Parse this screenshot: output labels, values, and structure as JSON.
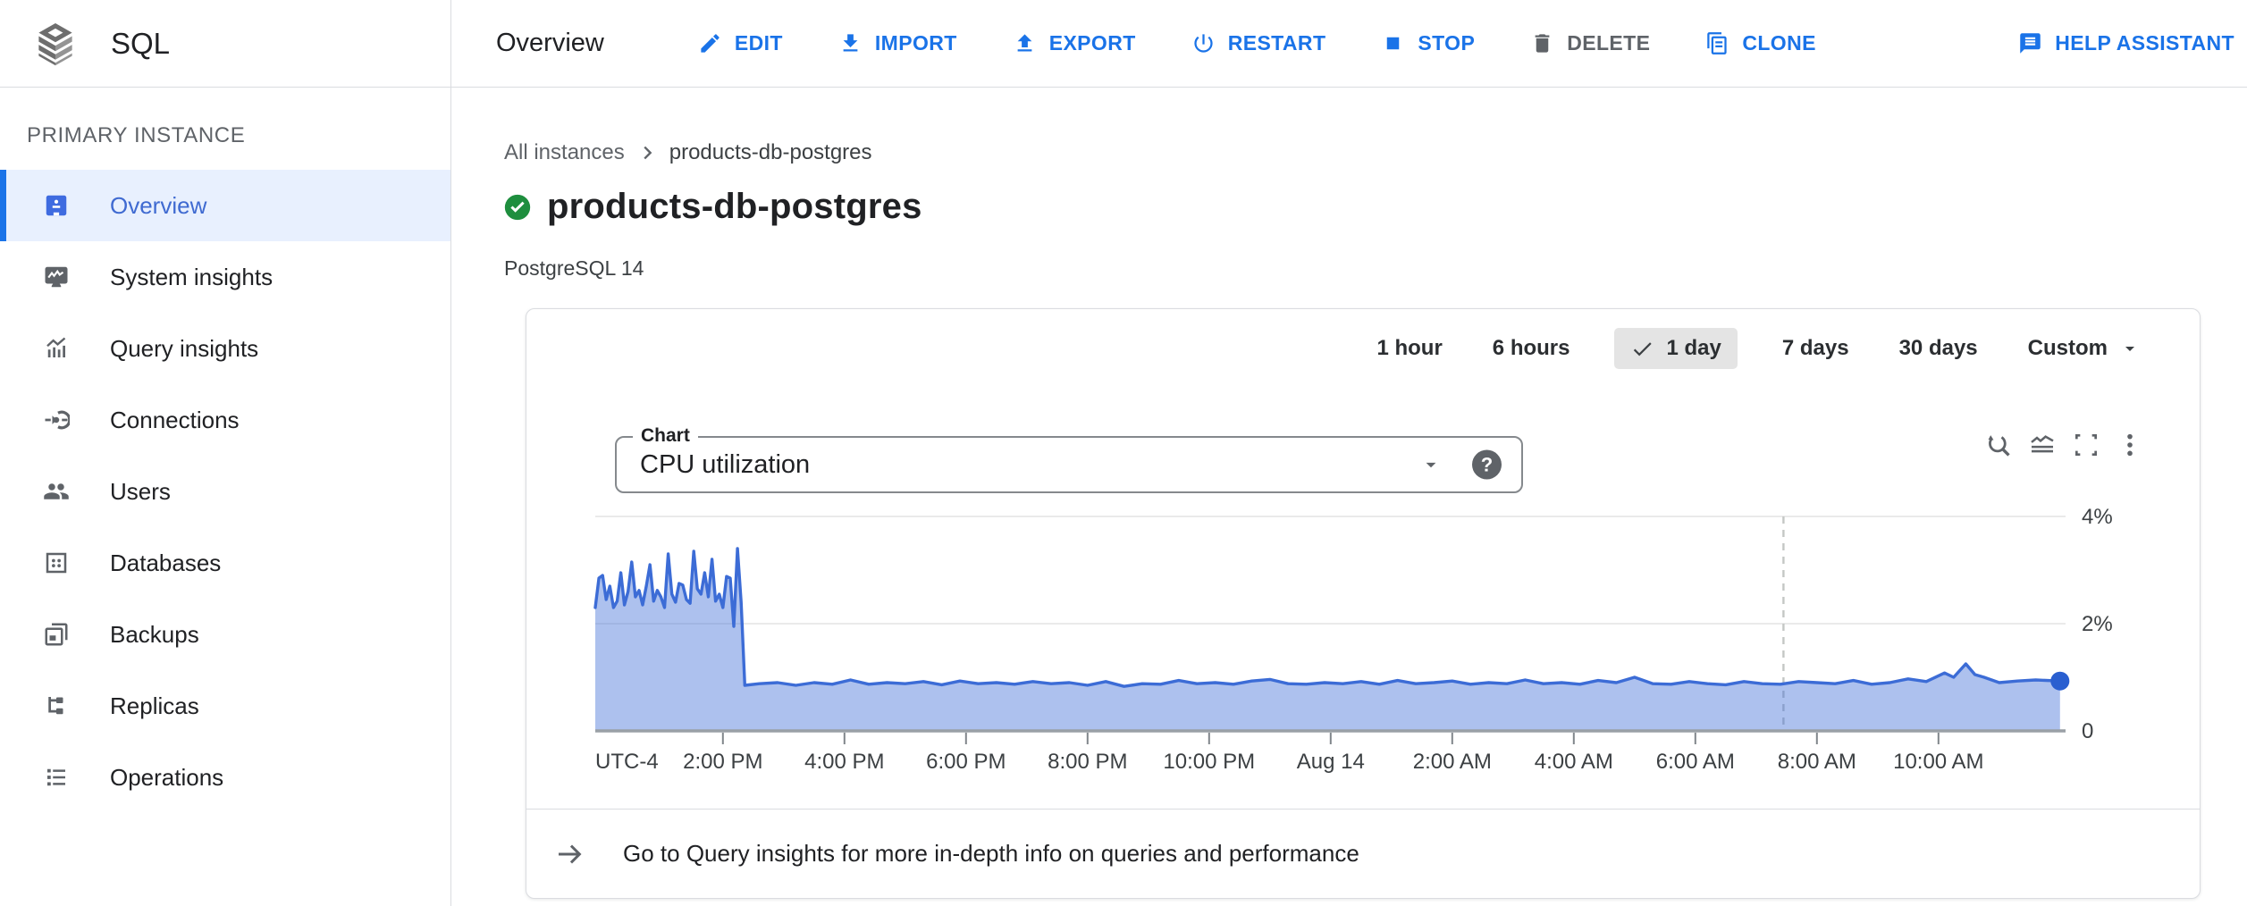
{
  "header": {
    "product": "SQL",
    "page_title": "Overview",
    "actions": [
      {
        "label": "EDIT",
        "icon": "edit-icon",
        "color": "blue"
      },
      {
        "label": "IMPORT",
        "icon": "import-icon",
        "color": "blue"
      },
      {
        "label": "EXPORT",
        "icon": "export-icon",
        "color": "blue"
      },
      {
        "label": "RESTART",
        "icon": "restart-icon",
        "color": "blue"
      },
      {
        "label": "STOP",
        "icon": "stop-icon",
        "color": "blue"
      },
      {
        "label": "DELETE",
        "icon": "delete-icon",
        "color": "gray"
      },
      {
        "label": "CLONE",
        "icon": "clone-icon",
        "color": "blue"
      },
      {
        "label": "HELP ASSISTANT",
        "icon": "help-assistant-icon",
        "color": "blue",
        "push_right": true
      }
    ]
  },
  "sidebar": {
    "section_label": "PRIMARY INSTANCE",
    "items": [
      {
        "label": "Overview",
        "icon": "overview-icon",
        "selected": true
      },
      {
        "label": "System insights",
        "icon": "system-insights-icon",
        "selected": false
      },
      {
        "label": "Query insights",
        "icon": "query-insights-icon",
        "selected": false
      },
      {
        "label": "Connections",
        "icon": "connections-icon",
        "selected": false
      },
      {
        "label": "Users",
        "icon": "users-icon",
        "selected": false
      },
      {
        "label": "Databases",
        "icon": "databases-icon",
        "selected": false
      },
      {
        "label": "Backups",
        "icon": "backups-icon",
        "selected": false
      },
      {
        "label": "Replicas",
        "icon": "replicas-icon",
        "selected": false
      },
      {
        "label": "Operations",
        "icon": "operations-icon",
        "selected": false
      }
    ]
  },
  "breadcrumb": {
    "root": "All instances",
    "current": "products-db-postgres"
  },
  "instance": {
    "name": "products-db-postgres",
    "engine": "PostgreSQL 14"
  },
  "time_range": {
    "options": [
      "1 hour",
      "6 hours",
      "1 day",
      "7 days",
      "30 days"
    ],
    "selected": "1 day",
    "custom_label": "Custom"
  },
  "chart_panel": {
    "selector_label": "Chart",
    "selected_metric": "CPU utilization",
    "help_glyph": "?",
    "toolbar_icons": [
      "zoom-reset-icon",
      "area-chart-icon",
      "fullscreen-icon",
      "more-vert-icon"
    ]
  },
  "footer_link": {
    "text": "Go to Query insights for more in-depth info on queries and performance"
  },
  "chart_data": {
    "type": "area",
    "title": "CPU utilization",
    "unit": "%",
    "ylim": [
      0,
      4.4
    ],
    "grid": true,
    "legend": "none",
    "timezone_label": "UTC-4",
    "x_unit": "hours from window start (1-day window ending ~12:00 PM Aug 14)",
    "y_ticks": [
      {
        "v": 0,
        "label": "0"
      },
      {
        "v": 2,
        "label": "2%"
      },
      {
        "v": 4,
        "label": "4%"
      }
    ],
    "x_ticks": [
      {
        "h": 2.1,
        "label": "2:00 PM"
      },
      {
        "h": 4.1,
        "label": "4:00 PM"
      },
      {
        "h": 6.1,
        "label": "6:00 PM"
      },
      {
        "h": 8.1,
        "label": "8:00 PM"
      },
      {
        "h": 10.1,
        "label": "10:00 PM"
      },
      {
        "h": 12.1,
        "label": "Aug 14"
      },
      {
        "h": 14.1,
        "label": "2:00 AM"
      },
      {
        "h": 16.1,
        "label": "4:00 AM"
      },
      {
        "h": 18.1,
        "label": "6:00 AM"
      },
      {
        "h": 20.1,
        "label": "8:00 AM"
      },
      {
        "h": 22.1,
        "label": "10:00 AM"
      }
    ],
    "marker_hour": 19.55,
    "end_dot": true,
    "colors": {
      "line": "#3c6cd6",
      "area": "#3c6cd6",
      "area_opacity": 0.42,
      "dot": "#2a5fd0",
      "grid": "#e3e3e3",
      "axis": "#9aa0a6",
      "tick": "#80868b",
      "label": "#3c4043",
      "marker": "#c4c7c5"
    },
    "points": [
      [
        0,
        2.3
      ],
      [
        0.06,
        2.85
      ],
      [
        0.12,
        2.9
      ],
      [
        0.18,
        2.45
      ],
      [
        0.24,
        2.7
      ],
      [
        0.3,
        2.3
      ],
      [
        0.36,
        2.42
      ],
      [
        0.42,
        2.95
      ],
      [
        0.48,
        2.35
      ],
      [
        0.54,
        2.6
      ],
      [
        0.6,
        3.15
      ],
      [
        0.66,
        2.5
      ],
      [
        0.72,
        2.62
      ],
      [
        0.78,
        2.35
      ],
      [
        0.84,
        2.7
      ],
      [
        0.9,
        3.1
      ],
      [
        0.96,
        2.42
      ],
      [
        1.02,
        2.62
      ],
      [
        1.08,
        2.5
      ],
      [
        1.14,
        2.3
      ],
      [
        1.2,
        3.3
      ],
      [
        1.26,
        2.55
      ],
      [
        1.32,
        2.4
      ],
      [
        1.38,
        2.75
      ],
      [
        1.44,
        2.72
      ],
      [
        1.5,
        2.45
      ],
      [
        1.56,
        2.38
      ],
      [
        1.62,
        3.35
      ],
      [
        1.68,
        2.65
      ],
      [
        1.74,
        2.55
      ],
      [
        1.8,
        2.95
      ],
      [
        1.86,
        2.5
      ],
      [
        1.92,
        3.2
      ],
      [
        1.98,
        2.42
      ],
      [
        2.04,
        2.55
      ],
      [
        2.1,
        2.3
      ],
      [
        2.16,
        2.88
      ],
      [
        2.22,
        2.85
      ],
      [
        2.28,
        1.95
      ],
      [
        2.34,
        3.4
      ],
      [
        2.4,
        2.4
      ],
      [
        2.46,
        0.85
      ],
      [
        2.7,
        0.88
      ],
      [
        3,
        0.9
      ],
      [
        3.3,
        0.85
      ],
      [
        3.6,
        0.9
      ],
      [
        3.9,
        0.87
      ],
      [
        4.2,
        0.95
      ],
      [
        4.5,
        0.87
      ],
      [
        4.8,
        0.9
      ],
      [
        5.1,
        0.88
      ],
      [
        5.4,
        0.92
      ],
      [
        5.7,
        0.86
      ],
      [
        6,
        0.93
      ],
      [
        6.3,
        0.88
      ],
      [
        6.6,
        0.9
      ],
      [
        6.9,
        0.87
      ],
      [
        7.2,
        0.92
      ],
      [
        7.5,
        0.88
      ],
      [
        7.8,
        0.9
      ],
      [
        8.1,
        0.85
      ],
      [
        8.4,
        0.92
      ],
      [
        8.7,
        0.83
      ],
      [
        9,
        0.88
      ],
      [
        9.3,
        0.87
      ],
      [
        9.6,
        0.94
      ],
      [
        9.9,
        0.88
      ],
      [
        10.2,
        0.9
      ],
      [
        10.5,
        0.87
      ],
      [
        10.8,
        0.93
      ],
      [
        11.1,
        0.96
      ],
      [
        11.4,
        0.88
      ],
      [
        11.7,
        0.87
      ],
      [
        12,
        0.9
      ],
      [
        12.3,
        0.88
      ],
      [
        12.6,
        0.92
      ],
      [
        12.9,
        0.87
      ],
      [
        13.2,
        0.94
      ],
      [
        13.5,
        0.88
      ],
      [
        13.8,
        0.9
      ],
      [
        14.1,
        0.93
      ],
      [
        14.4,
        0.87
      ],
      [
        14.7,
        0.9
      ],
      [
        15,
        0.88
      ],
      [
        15.3,
        0.95
      ],
      [
        15.6,
        0.88
      ],
      [
        15.9,
        0.9
      ],
      [
        16.2,
        0.87
      ],
      [
        16.5,
        0.94
      ],
      [
        16.8,
        0.9
      ],
      [
        17.1,
        1
      ],
      [
        17.4,
        0.88
      ],
      [
        17.7,
        0.87
      ],
      [
        18,
        0.92
      ],
      [
        18.3,
        0.88
      ],
      [
        18.6,
        0.86
      ],
      [
        18.9,
        0.92
      ],
      [
        19.2,
        0.88
      ],
      [
        19.5,
        0.87
      ],
      [
        19.8,
        0.92
      ],
      [
        20.1,
        0.9
      ],
      [
        20.4,
        0.88
      ],
      [
        20.7,
        0.94
      ],
      [
        21,
        0.87
      ],
      [
        21.3,
        0.9
      ],
      [
        21.6,
        0.97
      ],
      [
        21.9,
        0.92
      ],
      [
        22.2,
        1.08
      ],
      [
        22.35,
        1
      ],
      [
        22.55,
        1.25
      ],
      [
        22.7,
        1.05
      ],
      [
        22.85,
        1
      ],
      [
        23.1,
        0.9
      ],
      [
        23.4,
        0.93
      ],
      [
        23.7,
        0.95
      ],
      [
        24.1,
        0.93
      ]
    ]
  }
}
